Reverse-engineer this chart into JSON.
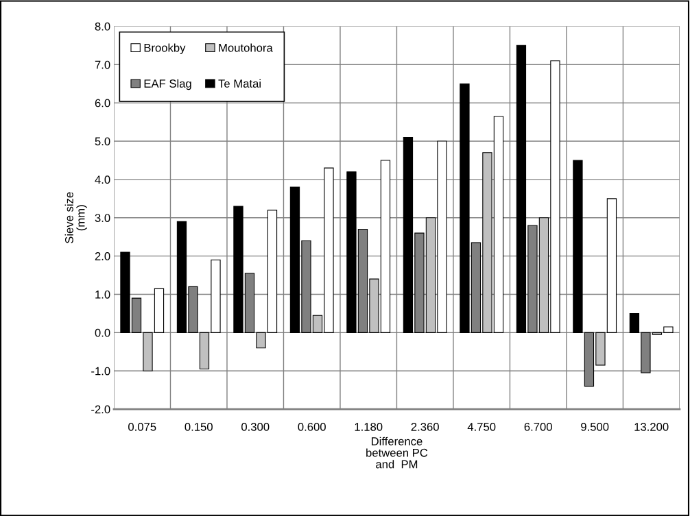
{
  "chart_data": {
    "type": "bar",
    "xlabel": "Difference\nbetween PC\nand  PM",
    "ylabel": "Sieve size\n(mm)",
    "categories": [
      "0.075",
      "0.150",
      "0.300",
      "0.600",
      "1.180",
      "2.360",
      "4.750",
      "6.700",
      "9.500",
      "13.200"
    ],
    "series": [
      {
        "name": "Te Matai",
        "color": "#000000",
        "values": [
          2.1,
          2.9,
          3.3,
          3.8,
          4.2,
          5.1,
          6.5,
          7.5,
          4.5,
          0.5
        ]
      },
      {
        "name": "EAF Slag",
        "color": "#808080",
        "values": [
          0.9,
          1.2,
          1.55,
          2.4,
          2.7,
          2.6,
          2.35,
          2.8,
          -1.4,
          -1.05
        ]
      },
      {
        "name": "Moutohora",
        "color": "#c0c0c0",
        "values": [
          -1.0,
          -0.95,
          -0.4,
          0.45,
          1.4,
          3.0,
          4.7,
          3.0,
          -0.85,
          -0.05
        ]
      },
      {
        "name": "Brookby",
        "color": "#ffffff",
        "values": [
          1.15,
          1.9,
          3.2,
          4.3,
          4.5,
          5.0,
          5.65,
          7.1,
          3.5,
          0.15
        ]
      }
    ],
    "ylim": [
      -2.0,
      8.0
    ],
    "yticks": [
      {
        "value": -2,
        "label": "-2.0"
      },
      {
        "value": -1,
        "label": "-1.0"
      },
      {
        "value": 0,
        "label": "0.0"
      },
      {
        "value": 1,
        "label": "1.0"
      },
      {
        "value": 2,
        "label": "2.0"
      },
      {
        "value": 3,
        "label": "3.0"
      },
      {
        "value": 4,
        "label": "4.0"
      },
      {
        "value": 5,
        "label": "5.0"
      },
      {
        "value": 6,
        "label": "6.0"
      },
      {
        "value": 7,
        "label": "7.0"
      },
      {
        "value": 8,
        "label": "8.0"
      }
    ],
    "grid": true,
    "legend": "top left"
  }
}
